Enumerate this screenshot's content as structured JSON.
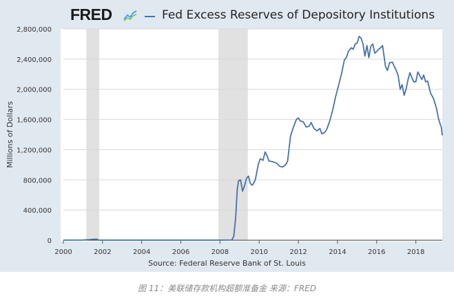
{
  "header": {
    "logo_text": "FRED",
    "logo_icon": "trend-graph-icon"
  },
  "chart_data": {
    "type": "line",
    "title": "Fed Excess Reserves of Depository Institutions",
    "xlabel": "",
    "ylabel": "Millions of Dollars",
    "source": "Source: Federal Reserve Bank of St. Louis",
    "xlim": [
      2000.0,
      2019.35
    ],
    "ylim": [
      0,
      2800000
    ],
    "x_ticks": [
      2000,
      2002,
      2004,
      2006,
      2008,
      2010,
      2012,
      2014,
      2016,
      2018
    ],
    "x_tick_labels": [
      "2000",
      "2002",
      "2004",
      "2006",
      "2008",
      "2010",
      "2012",
      "2014",
      "2016",
      "2018"
    ],
    "y_ticks": [
      0,
      400000,
      800000,
      1200000,
      1600000,
      2000000,
      2400000,
      2800000
    ],
    "y_tick_labels": [
      "0",
      "400,000",
      "800,000",
      "1,200,000",
      "1,600,000",
      "2,000,000",
      "2,400,000",
      "2,800,000"
    ],
    "grid": true,
    "line_color": "#4572a7",
    "recessions": [
      {
        "start": 2001.17,
        "end": 2001.83
      },
      {
        "start": 2007.92,
        "end": 2009.42
      }
    ],
    "series": [
      {
        "values": [
          [
            2000.0,
            1500
          ],
          [
            2001.0,
            3000
          ],
          [
            2001.7,
            15000
          ],
          [
            2001.8,
            2000
          ],
          [
            2002.0,
            1500
          ],
          [
            2004.0,
            1500
          ],
          [
            2006.0,
            1500
          ],
          [
            2008.0,
            2000
          ],
          [
            2008.6,
            2500
          ],
          [
            2008.7,
            50000
          ],
          [
            2008.8,
            300000
          ],
          [
            2008.88,
            680000
          ],
          [
            2008.95,
            790000
          ],
          [
            2009.05,
            800000
          ],
          [
            2009.15,
            650000
          ],
          [
            2009.25,
            720000
          ],
          [
            2009.35,
            820000
          ],
          [
            2009.45,
            850000
          ],
          [
            2009.55,
            750000
          ],
          [
            2009.65,
            730000
          ],
          [
            2009.8,
            800000
          ],
          [
            2009.95,
            1000000
          ],
          [
            2010.05,
            1080000
          ],
          [
            2010.2,
            1060000
          ],
          [
            2010.3,
            1170000
          ],
          [
            2010.4,
            1120000
          ],
          [
            2010.5,
            1050000
          ],
          [
            2010.7,
            1040000
          ],
          [
            2010.9,
            1020000
          ],
          [
            2011.05,
            980000
          ],
          [
            2011.2,
            970000
          ],
          [
            2011.35,
            1000000
          ],
          [
            2011.45,
            1050000
          ],
          [
            2011.6,
            1380000
          ],
          [
            2011.75,
            1500000
          ],
          [
            2011.9,
            1600000
          ],
          [
            2012.0,
            1620000
          ],
          [
            2012.1,
            1580000
          ],
          [
            2012.25,
            1570000
          ],
          [
            2012.4,
            1500000
          ],
          [
            2012.55,
            1510000
          ],
          [
            2012.65,
            1560000
          ],
          [
            2012.8,
            1480000
          ],
          [
            2012.95,
            1450000
          ],
          [
            2013.1,
            1480000
          ],
          [
            2013.2,
            1410000
          ],
          [
            2013.35,
            1430000
          ],
          [
            2013.45,
            1470000
          ],
          [
            2013.6,
            1580000
          ],
          [
            2013.75,
            1720000
          ],
          [
            2013.9,
            1900000
          ],
          [
            2014.05,
            2050000
          ],
          [
            2014.2,
            2200000
          ],
          [
            2014.35,
            2390000
          ],
          [
            2014.45,
            2420000
          ],
          [
            2014.55,
            2500000
          ],
          [
            2014.7,
            2550000
          ],
          [
            2014.8,
            2530000
          ],
          [
            2014.9,
            2600000
          ],
          [
            2015.0,
            2610000
          ],
          [
            2015.1,
            2700000
          ],
          [
            2015.2,
            2680000
          ],
          [
            2015.3,
            2600000
          ],
          [
            2015.4,
            2440000
          ],
          [
            2015.5,
            2580000
          ],
          [
            2015.6,
            2420000
          ],
          [
            2015.7,
            2570000
          ],
          [
            2015.8,
            2600000
          ],
          [
            2015.9,
            2480000
          ],
          [
            2016.0,
            2500000
          ],
          [
            2016.1,
            2530000
          ],
          [
            2016.2,
            2550000
          ],
          [
            2016.3,
            2580000
          ],
          [
            2016.45,
            2300000
          ],
          [
            2016.55,
            2250000
          ],
          [
            2016.65,
            2350000
          ],
          [
            2016.8,
            2360000
          ],
          [
            2016.9,
            2300000
          ],
          [
            2017.0,
            2250000
          ],
          [
            2017.1,
            2180000
          ],
          [
            2017.2,
            2000000
          ],
          [
            2017.3,
            2060000
          ],
          [
            2017.4,
            1920000
          ],
          [
            2017.5,
            2000000
          ],
          [
            2017.6,
            2130000
          ],
          [
            2017.7,
            2220000
          ],
          [
            2017.8,
            2150000
          ],
          [
            2017.9,
            2100000
          ],
          [
            2018.0,
            2100000
          ],
          [
            2018.1,
            2230000
          ],
          [
            2018.2,
            2180000
          ],
          [
            2018.3,
            2130000
          ],
          [
            2018.4,
            2190000
          ],
          [
            2018.5,
            2100000
          ],
          [
            2018.6,
            2110000
          ],
          [
            2018.75,
            1950000
          ],
          [
            2018.9,
            1880000
          ],
          [
            2019.05,
            1750000
          ],
          [
            2019.15,
            1620000
          ],
          [
            2019.25,
            1530000
          ],
          [
            2019.3,
            1500000
          ],
          [
            2019.35,
            1390000
          ]
        ]
      }
    ]
  },
  "caption": "图 11：美联储存款机构超额准备金  来源：FRED"
}
